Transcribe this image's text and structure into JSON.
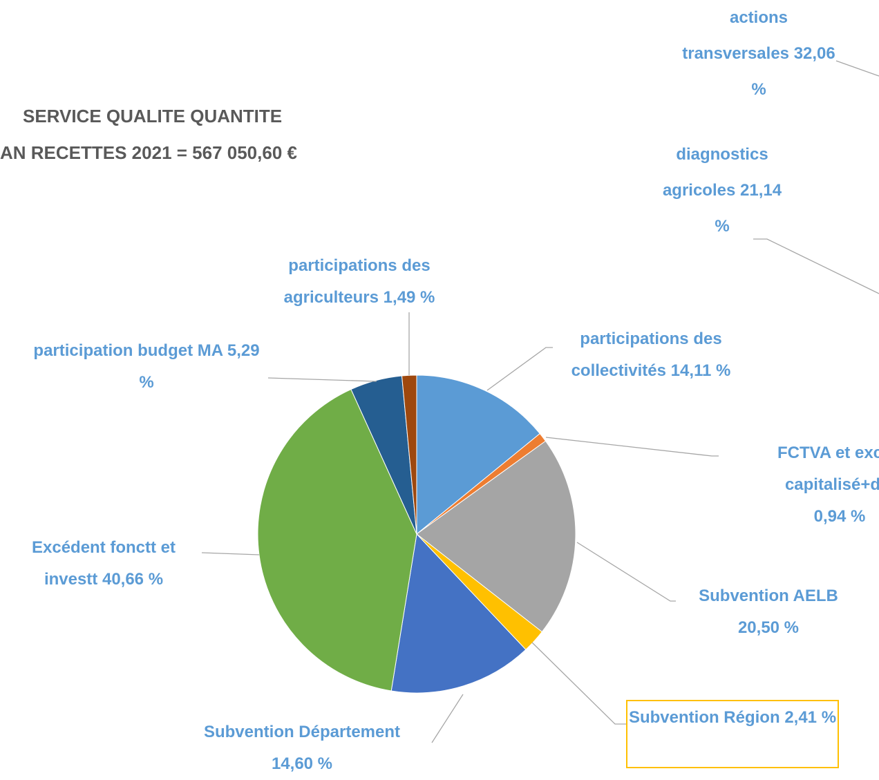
{
  "chart_data": {
    "type": "pie",
    "title": "SERVICE QUALITE QUANTITE",
    "subtitle": "AN RECETTES 2021 = 567 050,60 €",
    "categories": [
      "participations des collectivités",
      "FCTVA et excéd capitalisé+div",
      "Subvention AELB",
      "Subvention Région",
      "Subvention Département",
      "Excédent fonctt et investt",
      "participation budget MA",
      "participations des agriculteurs"
    ],
    "values": [
      14.11,
      0.94,
      20.5,
      2.41,
      14.6,
      40.66,
      5.29,
      1.49
    ],
    "value_labels": [
      "14,11 %",
      "0,94 %",
      "20,50 %",
      "2,41 %",
      "14,60 %",
      "40,66 %",
      "5,29 %",
      "1,49 %"
    ],
    "colors": [
      "#5B9BD5",
      "#ED7D31",
      "#A5A5A5",
      "#FFC000",
      "#4472C4",
      "#70AD47",
      "#255E91",
      "#9E480E"
    ],
    "annotations": [
      {
        "text": "actions transversales",
        "value": "32,06 %"
      },
      {
        "text": "diagnostics agricoles",
        "value": "21,14 %"
      }
    ]
  }
}
